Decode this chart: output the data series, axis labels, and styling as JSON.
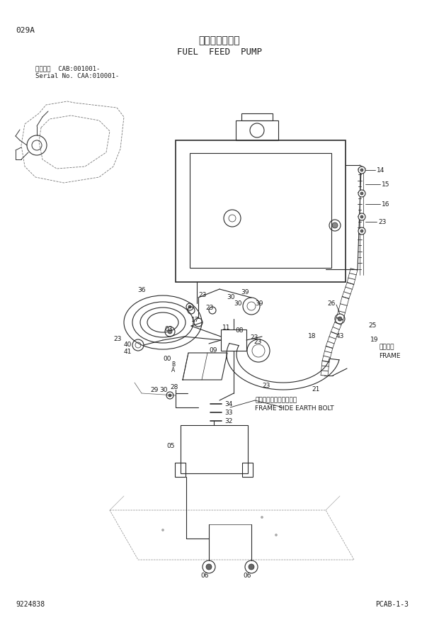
{
  "title_japanese": "燃料給油ポンプ",
  "title_english": "FUEL FEED PUMP",
  "page_code": "029A",
  "serial_line1": "適用号機  CAB:001001-",
  "serial_line2": "Serial No. CAA:010001-",
  "doc_number": "9224838",
  "page_ref": "PCAB-1-3",
  "bg_color": "#ffffff",
  "lc": "#2a2a2a",
  "tc": "#1a1a1a"
}
